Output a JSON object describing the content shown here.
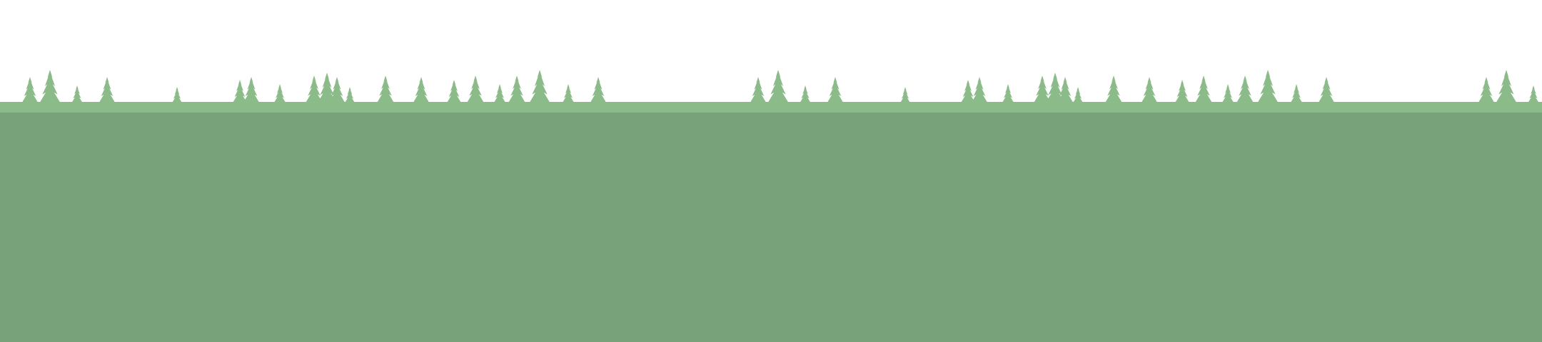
{
  "scene": {
    "colors": {
      "sky": "#ffffff",
      "tree": "#8cbb8a",
      "ground_strip": "#8cbb8a",
      "ground": "#78a27a"
    },
    "icons": {
      "tree": "pine-tree-icon"
    }
  }
}
